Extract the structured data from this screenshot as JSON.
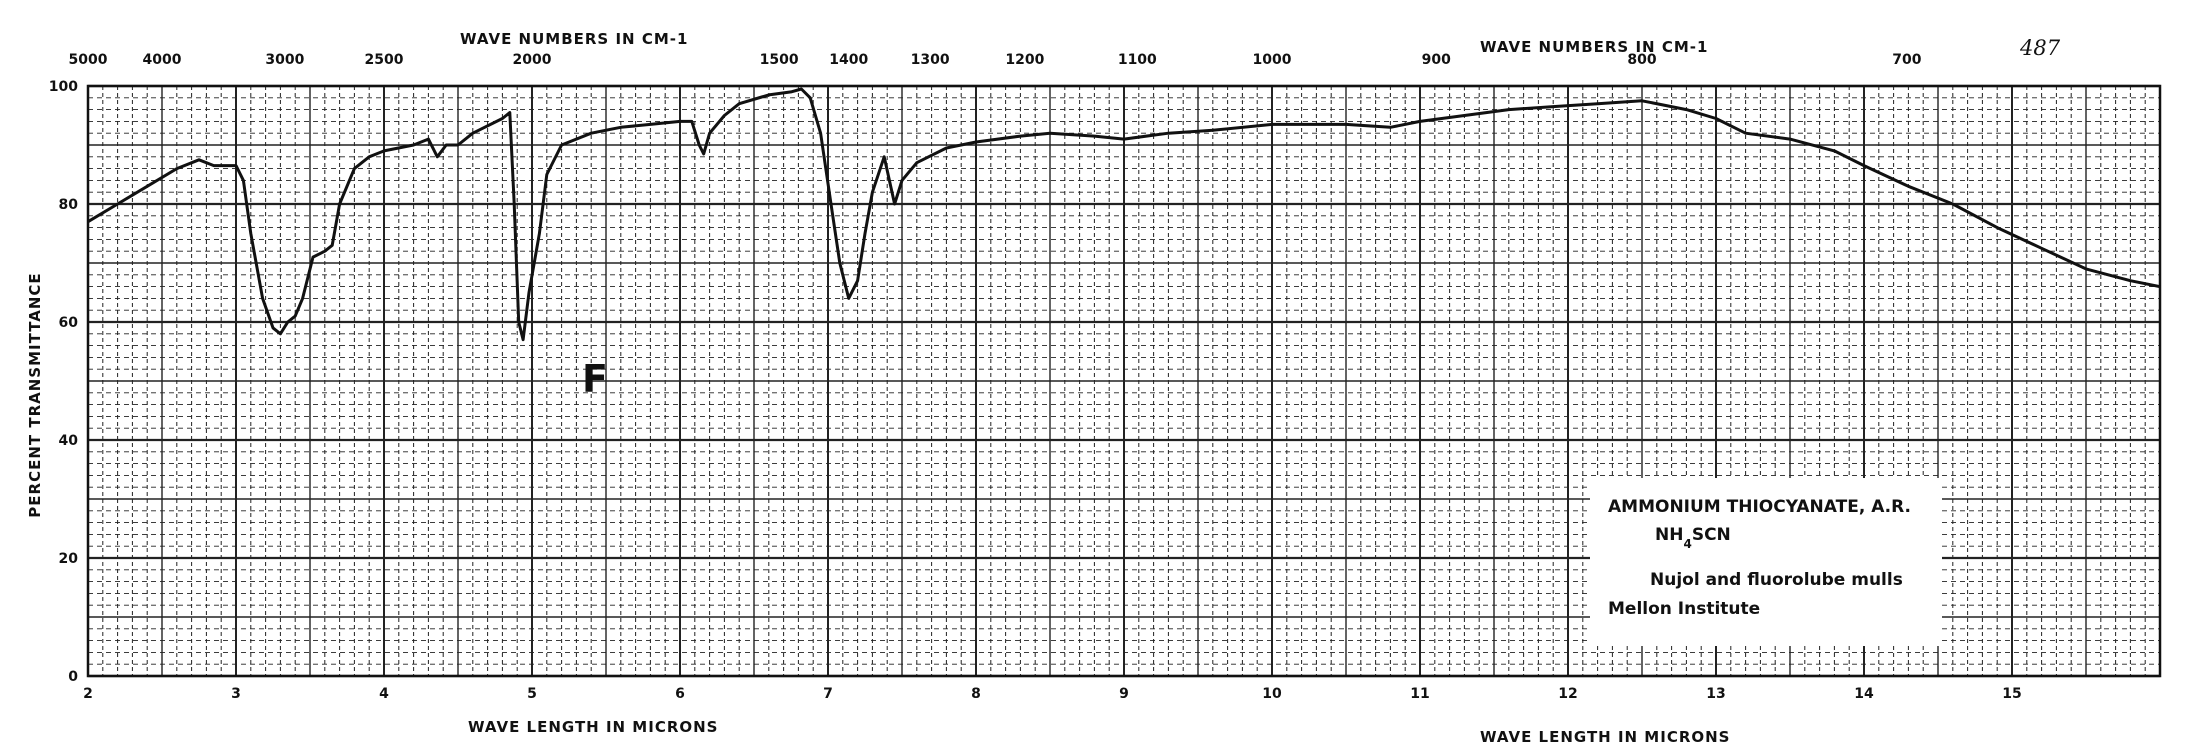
{
  "chart_data": {
    "type": "line",
    "title_top_left": "WAVE NUMBERS IN CM-1",
    "title_top_right": "WAVE NUMBERS IN CM-1",
    "xlabel_left": "WAVE LENGTH IN MICRONS",
    "xlabel_right": "WAVE LENGTH IN MICRONS",
    "ylabel": "PERCENT TRANSMITTANCE",
    "page_number": "487",
    "mark_f": "F",
    "xlim": [
      2,
      16
    ],
    "ylim": [
      0,
      100
    ],
    "x_ticks": [
      {
        "v": 2,
        "label": "2"
      },
      {
        "v": 3,
        "label": "3"
      },
      {
        "v": 4,
        "label": "4"
      },
      {
        "v": 5,
        "label": "5"
      },
      {
        "v": 6,
        "label": "6"
      },
      {
        "v": 7,
        "label": "7"
      },
      {
        "v": 8,
        "label": "8"
      },
      {
        "v": 9,
        "label": "9"
      },
      {
        "v": 10,
        "label": "10"
      },
      {
        "v": 11,
        "label": "11"
      },
      {
        "v": 12,
        "label": "12"
      },
      {
        "v": 13,
        "label": "13"
      },
      {
        "v": 14,
        "label": "14"
      },
      {
        "v": 15,
        "label": "15"
      }
    ],
    "top_ticks": [
      {
        "v": 2.0,
        "label": "5000"
      },
      {
        "v": 2.5,
        "label": "4000"
      },
      {
        "v": 3.33,
        "label": "3000"
      },
      {
        "v": 4.0,
        "label": "2500"
      },
      {
        "v": 5.0,
        "label": "2000"
      },
      {
        "v": 6.67,
        "label": "1500"
      },
      {
        "v": 7.14,
        "label": "1400"
      },
      {
        "v": 7.69,
        "label": "1300"
      },
      {
        "v": 8.33,
        "label": "1200"
      },
      {
        "v": 9.09,
        "label": "1100"
      },
      {
        "v": 10.0,
        "label": "1000"
      },
      {
        "v": 11.11,
        "label": "900"
      },
      {
        "v": 12.5,
        "label": "800"
      },
      {
        "v": 14.29,
        "label": "700"
      }
    ],
    "y_ticks": [
      {
        "v": 0,
        "label": "0"
      },
      {
        "v": 20,
        "label": "20"
      },
      {
        "v": 40,
        "label": "40"
      },
      {
        "v": 60,
        "label": "60"
      },
      {
        "v": 80,
        "label": "80"
      },
      {
        "v": 100,
        "label": "100"
      }
    ],
    "grid": true,
    "series": [
      {
        "points": [
          [
            2.0,
            77
          ],
          [
            2.2,
            80
          ],
          [
            2.4,
            83
          ],
          [
            2.6,
            86
          ],
          [
            2.75,
            87.5
          ],
          [
            2.85,
            86.5
          ],
          [
            3.0,
            86.5
          ],
          [
            3.05,
            84
          ],
          [
            3.1,
            75
          ],
          [
            3.18,
            64
          ],
          [
            3.25,
            59
          ],
          [
            3.3,
            58
          ],
          [
            3.35,
            60
          ],
          [
            3.4,
            61
          ],
          [
            3.45,
            64
          ],
          [
            3.52,
            71
          ],
          [
            3.6,
            72
          ],
          [
            3.65,
            73
          ],
          [
            3.7,
            80
          ],
          [
            3.8,
            86
          ],
          [
            3.9,
            88
          ],
          [
            4.0,
            89
          ],
          [
            4.2,
            90
          ],
          [
            4.3,
            91
          ],
          [
            4.36,
            88
          ],
          [
            4.42,
            90
          ],
          [
            4.5,
            90
          ],
          [
            4.6,
            92
          ],
          [
            4.8,
            94.5
          ],
          [
            4.85,
            95.5
          ],
          [
            4.88,
            80
          ],
          [
            4.91,
            60
          ],
          [
            4.94,
            57
          ],
          [
            4.98,
            65
          ],
          [
            5.05,
            75
          ],
          [
            5.1,
            85
          ],
          [
            5.2,
            90
          ],
          [
            5.4,
            92
          ],
          [
            5.6,
            93
          ],
          [
            5.8,
            93.5
          ],
          [
            6.0,
            94
          ],
          [
            6.08,
            94
          ],
          [
            6.13,
            90
          ],
          [
            6.16,
            88.5
          ],
          [
            6.2,
            92
          ],
          [
            6.3,
            95
          ],
          [
            6.4,
            97
          ],
          [
            6.6,
            98.5
          ],
          [
            6.75,
            99
          ],
          [
            6.82,
            99.5
          ],
          [
            6.88,
            98
          ],
          [
            6.95,
            92
          ],
          [
            7.02,
            80
          ],
          [
            7.08,
            70
          ],
          [
            7.14,
            64
          ],
          [
            7.2,
            67
          ],
          [
            7.25,
            75
          ],
          [
            7.3,
            82
          ],
          [
            7.38,
            88
          ],
          [
            7.45,
            80
          ],
          [
            7.5,
            84
          ],
          [
            7.6,
            87
          ],
          [
            7.8,
            89.5
          ],
          [
            8.0,
            90.5
          ],
          [
            8.3,
            91.5
          ],
          [
            8.5,
            92
          ],
          [
            8.8,
            91.5
          ],
          [
            9.0,
            91
          ],
          [
            9.3,
            92
          ],
          [
            9.6,
            92.5
          ],
          [
            10.0,
            93.5
          ],
          [
            10.5,
            93.5
          ],
          [
            10.8,
            93
          ],
          [
            11.0,
            94
          ],
          [
            11.3,
            95
          ],
          [
            11.6,
            96
          ],
          [
            11.9,
            96.5
          ],
          [
            12.2,
            97
          ],
          [
            12.5,
            97.5
          ],
          [
            12.8,
            96
          ],
          [
            13.0,
            94.5
          ],
          [
            13.2,
            92
          ],
          [
            13.5,
            91
          ],
          [
            13.8,
            89
          ],
          [
            14.0,
            86.5
          ],
          [
            14.3,
            83
          ],
          [
            14.6,
            80
          ],
          [
            14.9,
            76
          ],
          [
            15.2,
            72.5
          ],
          [
            15.5,
            69
          ],
          [
            15.8,
            67
          ],
          [
            16.0,
            66
          ]
        ]
      }
    ],
    "annotation": {
      "compound": "AMMONIUM THIOCYANATE, A.R.",
      "formula_pre": "NH",
      "formula_sub": "4",
      "formula_post": "SCN",
      "sample": "Nujol and fluorolube mulls",
      "source": "Mellon Institute"
    }
  }
}
